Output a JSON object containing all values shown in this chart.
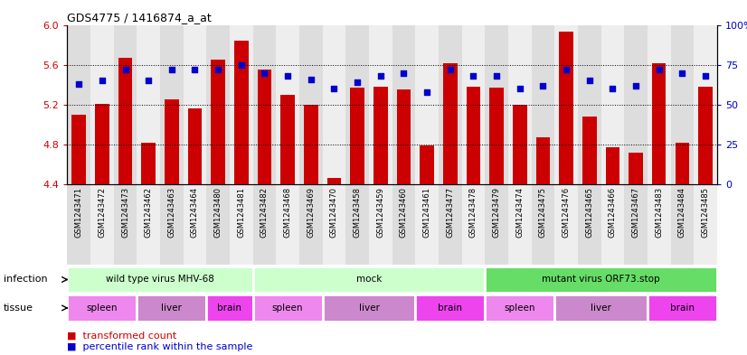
{
  "title": "GDS4775 / 1416874_a_at",
  "samples": [
    "GSM1243471",
    "GSM1243472",
    "GSM1243473",
    "GSM1243462",
    "GSM1243463",
    "GSM1243464",
    "GSM1243480",
    "GSM1243481",
    "GSM1243482",
    "GSM1243468",
    "GSM1243469",
    "GSM1243470",
    "GSM1243458",
    "GSM1243459",
    "GSM1243460",
    "GSM1243461",
    "GSM1243477",
    "GSM1243478",
    "GSM1243479",
    "GSM1243474",
    "GSM1243475",
    "GSM1243476",
    "GSM1243465",
    "GSM1243466",
    "GSM1243467",
    "GSM1243483",
    "GSM1243484",
    "GSM1243485"
  ],
  "transformed_counts": [
    5.1,
    5.21,
    5.67,
    4.82,
    5.25,
    5.16,
    5.65,
    5.84,
    5.55,
    5.3,
    5.2,
    4.47,
    5.37,
    5.38,
    5.35,
    4.79,
    5.62,
    5.38,
    5.37,
    5.2,
    4.87,
    5.93,
    5.08,
    4.77,
    4.72,
    5.62,
    4.82,
    5.38
  ],
  "percentile_ranks": [
    63,
    65,
    72,
    65,
    72,
    72,
    72,
    75,
    70,
    68,
    66,
    60,
    64,
    68,
    70,
    58,
    72,
    68,
    68,
    60,
    62,
    72,
    65,
    60,
    62,
    72,
    70,
    68
  ],
  "ylim_left": [
    4.4,
    6.0
  ],
  "ylim_right": [
    0,
    100
  ],
  "yticks_left": [
    4.4,
    4.8,
    5.2,
    5.6,
    6.0
  ],
  "yticks_right": [
    0,
    25,
    50,
    75,
    100
  ],
  "bar_color": "#cc0000",
  "dot_color": "#0000cc",
  "infection_groups": [
    {
      "label": "wild type virus MHV-68",
      "start": 0,
      "end": 8,
      "color": "#ccffcc"
    },
    {
      "label": "mock",
      "start": 8,
      "end": 18,
      "color": "#ccffcc"
    },
    {
      "label": "mutant virus ORF73.stop",
      "start": 18,
      "end": 28,
      "color": "#66dd66"
    }
  ],
  "tissue_groups": [
    {
      "label": "spleen",
      "start": 0,
      "end": 3,
      "color": "#ee88ee"
    },
    {
      "label": "liver",
      "start": 3,
      "end": 6,
      "color": "#cc88cc"
    },
    {
      "label": "brain",
      "start": 6,
      "end": 8,
      "color": "#ee44ee"
    },
    {
      "label": "spleen",
      "start": 8,
      "end": 11,
      "color": "#ee88ee"
    },
    {
      "label": "liver",
      "start": 11,
      "end": 15,
      "color": "#cc88cc"
    },
    {
      "label": "brain",
      "start": 15,
      "end": 18,
      "color": "#ee44ee"
    },
    {
      "label": "spleen",
      "start": 18,
      "end": 21,
      "color": "#ee88ee"
    },
    {
      "label": "liver",
      "start": 21,
      "end": 25,
      "color": "#cc88cc"
    },
    {
      "label": "brain",
      "start": 25,
      "end": 28,
      "color": "#ee44ee"
    }
  ],
  "infection_row_label": "infection",
  "tissue_row_label": "tissue",
  "col_bg_colors": [
    "#dddddd",
    "#eeeeee"
  ],
  "grid_yticks": [
    4.8,
    5.2,
    5.6
  ],
  "right_axis_100_label": "100%"
}
